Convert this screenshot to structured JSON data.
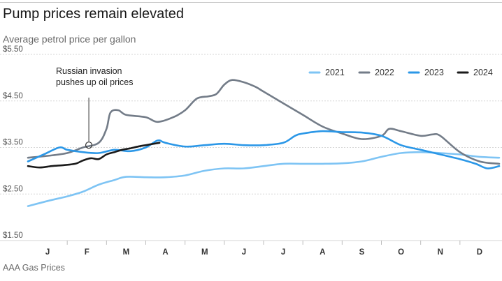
{
  "header": {
    "title": "Pump prices remain elevated",
    "subtitle": "Average petrol price per gallon",
    "source": "AAA Gas Prices"
  },
  "chart_data": {
    "type": "line",
    "title": "Pump prices remain elevated",
    "subtitle": "Average petrol price per gallon",
    "source": "AAA Gas Prices",
    "ylim": [
      1.5,
      5.5
    ],
    "yticks": [
      1.5,
      2.5,
      3.5,
      4.5,
      5.5
    ],
    "ytick_labels": [
      "$1.50",
      "$2.50",
      "$3.50",
      "$4.50",
      "$5.50"
    ],
    "xlim": [
      0,
      12
    ],
    "xticks": [
      0.5,
      1.5,
      2.5,
      3.5,
      4.5,
      5.5,
      6.5,
      7.5,
      8.5,
      9.5,
      10.5,
      11.5
    ],
    "xtick_labels": [
      "J",
      "F",
      "M",
      "A",
      "M",
      "J",
      "J",
      "A",
      "S",
      "O",
      "N",
      "D"
    ],
    "grid": "horizontal",
    "legend_position": "top-right",
    "annotation": {
      "text_lines": [
        "Russian invasion",
        "pushes up oil prices"
      ],
      "x": 1.55,
      "y": 3.55
    },
    "series": [
      {
        "name": "2021",
        "color": "#7ec4f4",
        "x": [
          0,
          0.5,
          1.0,
          1.4,
          1.8,
          2.2,
          2.5,
          3.0,
          3.5,
          4.0,
          4.5,
          5.0,
          5.5,
          6.0,
          6.5,
          7.0,
          7.5,
          8.0,
          8.5,
          9.0,
          9.5,
          10.0,
          10.5,
          11.0,
          11.5,
          12.0
        ],
        "y": [
          2.24,
          2.35,
          2.45,
          2.55,
          2.7,
          2.8,
          2.87,
          2.86,
          2.86,
          2.9,
          3.0,
          3.05,
          3.05,
          3.1,
          3.15,
          3.15,
          3.15,
          3.16,
          3.2,
          3.3,
          3.38,
          3.4,
          3.38,
          3.35,
          3.3,
          3.28
        ]
      },
      {
        "name": "2022",
        "color": "#737c88",
        "x": [
          0,
          0.5,
          1.0,
          1.4,
          1.8,
          2.0,
          2.1,
          2.3,
          2.5,
          3.0,
          3.3,
          3.7,
          4.0,
          4.3,
          4.6,
          4.8,
          5.0,
          5.2,
          5.5,
          5.8,
          6.0,
          6.5,
          7.0,
          7.5,
          8.0,
          8.5,
          9.0,
          9.2,
          9.5,
          10.0,
          10.3,
          10.5,
          11.0,
          11.5,
          12.0
        ],
        "y": [
          3.28,
          3.32,
          3.38,
          3.5,
          3.6,
          3.9,
          4.25,
          4.3,
          4.2,
          4.15,
          4.05,
          4.15,
          4.3,
          4.55,
          4.6,
          4.65,
          4.85,
          4.95,
          4.9,
          4.8,
          4.7,
          4.45,
          4.2,
          3.95,
          3.8,
          3.68,
          3.75,
          3.9,
          3.85,
          3.75,
          3.78,
          3.75,
          3.4,
          3.2,
          3.15
        ]
      },
      {
        "name": "2023",
        "color": "#2b97e7",
        "x": [
          0,
          0.4,
          0.8,
          1.0,
          1.4,
          1.8,
          2.2,
          2.6,
          3.0,
          3.3,
          3.5,
          4.0,
          4.5,
          5.0,
          5.5,
          6.0,
          6.5,
          6.8,
          7.0,
          7.5,
          8.0,
          8.5,
          9.0,
          9.5,
          10.0,
          10.5,
          11.0,
          11.4,
          11.7,
          12.0
        ],
        "y": [
          3.2,
          3.35,
          3.5,
          3.45,
          3.4,
          3.38,
          3.45,
          3.42,
          3.5,
          3.65,
          3.6,
          3.52,
          3.55,
          3.58,
          3.55,
          3.55,
          3.6,
          3.75,
          3.8,
          3.85,
          3.83,
          3.82,
          3.75,
          3.55,
          3.45,
          3.35,
          3.25,
          3.15,
          3.05,
          3.1
        ]
      },
      {
        "name": "2024",
        "color": "#1a1a1a",
        "x": [
          0,
          0.3,
          0.6,
          0.9,
          1.2,
          1.4,
          1.6,
          1.8,
          2.0,
          2.2,
          2.4,
          2.6,
          2.8,
          3.0,
          3.2,
          3.35
        ],
        "y": [
          3.1,
          3.07,
          3.1,
          3.12,
          3.15,
          3.22,
          3.27,
          3.25,
          3.35,
          3.4,
          3.45,
          3.48,
          3.52,
          3.55,
          3.58,
          3.6
        ]
      }
    ]
  }
}
